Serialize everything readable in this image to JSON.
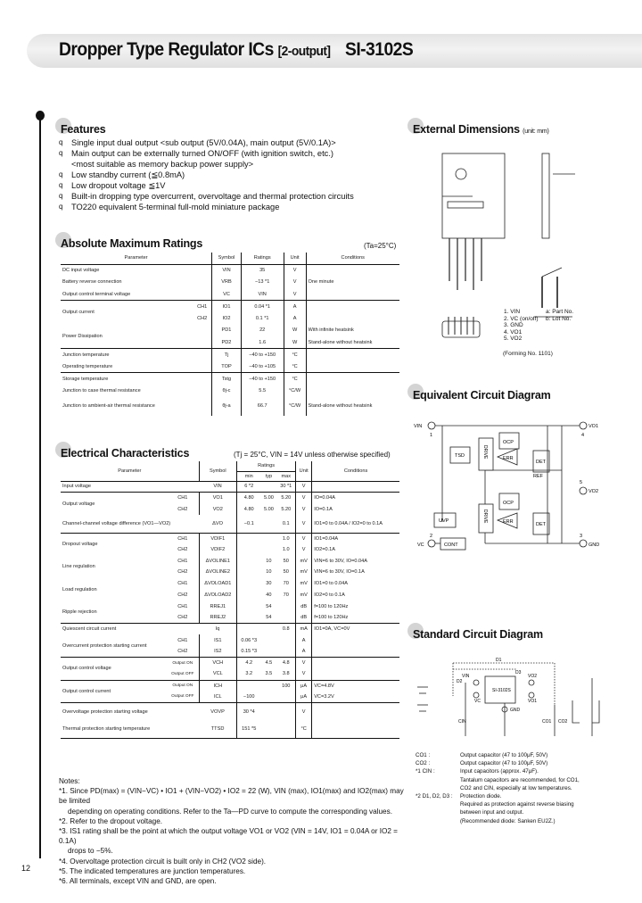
{
  "header": {
    "title": "Dropper Type Regulator ICs",
    "subtitle": "[2-output]",
    "part_number": "SI-3102S"
  },
  "features": {
    "heading": "Features",
    "bullet": "q",
    "items": [
      "Single input dual output <sub output (5V/0.04A), main output (5V/0.1A)>",
      "Main output can be externally turned ON/OFF (with ignition switch, etc.)",
      "<most suitable as memory backup power supply>",
      "Low standby current (≦0.8mA)",
      "Low dropout voltage ≦1V",
      "Built-in dropping type overcurrent, overvoltage and thermal protection circuits",
      "TO220 equivalent 5-terminal full-mold miniature package"
    ]
  },
  "abs_max": {
    "heading": "Absolute Maximum Ratings",
    "condition": "(Ta=25°C)",
    "columns": [
      "Parameter",
      "Symbol",
      "Ratings",
      "Unit",
      "Conditions"
    ],
    "groups": [
      {
        "parameter": "DC input voltage",
        "rows": [
          {
            "ch": "",
            "symbol": "VIN",
            "rating": "35",
            "unit": "V",
            "cond": ""
          }
        ]
      },
      {
        "parameter": "Battery reverse connection",
        "rows": [
          {
            "ch": "",
            "symbol": "VRB",
            "rating": "−13 *1",
            "unit": "V",
            "cond": "One minute"
          }
        ]
      },
      {
        "parameter": "Output control terminal voltage",
        "rows": [
          {
            "ch": "",
            "symbol": "VC",
            "rating": "VIN",
            "unit": "V",
            "cond": ""
          }
        ]
      },
      {
        "parameter": "Output current",
        "rows": [
          {
            "ch": "CH1",
            "symbol": "IO1",
            "rating": "0.04 *1",
            "unit": "A",
            "cond": ""
          },
          {
            "ch": "CH2",
            "symbol": "IO2",
            "rating": "0.1 *1",
            "unit": "A",
            "cond": ""
          }
        ]
      },
      {
        "parameter": "Power Dissipation",
        "rows": [
          {
            "ch": "",
            "symbol": "PD1",
            "rating": "22",
            "unit": "W",
            "cond": "With infinite heatsink"
          },
          {
            "ch": "",
            "symbol": "PD2",
            "rating": "1.6",
            "unit": "W",
            "cond": "Stand-alone without heatsink"
          }
        ]
      },
      {
        "parameter": "Junction temperature",
        "rows": [
          {
            "ch": "",
            "symbol": "Tj",
            "rating": "−40 to +150",
            "unit": "°C",
            "cond": ""
          }
        ]
      },
      {
        "parameter": "Operating temperature",
        "rows": [
          {
            "ch": "",
            "symbol": "TOP",
            "rating": "−40 to +105",
            "unit": "°C",
            "cond": ""
          }
        ]
      },
      {
        "parameter": "Storage temperature",
        "rows": [
          {
            "ch": "",
            "symbol": "Tstg",
            "rating": "−40 to +150",
            "unit": "°C",
            "cond": ""
          }
        ]
      },
      {
        "parameter": "Junction to case thermal resistance",
        "rows": [
          {
            "ch": "",
            "symbol": "θj-c",
            "rating": "5.5",
            "unit": "°C/W",
            "cond": ""
          }
        ]
      },
      {
        "parameter": "Junction to ambient-air thermal resistance",
        "rows": [
          {
            "ch": "",
            "symbol": "θj-a",
            "rating": "66.7",
            "unit": "°C/W",
            "cond": "Stand-alone without heatsink"
          }
        ]
      }
    ]
  },
  "elec": {
    "heading": "Electrical Characteristics",
    "condition": "(Tj = 25°C, VIN = 14V unless otherwise specified)",
    "columns": {
      "parameter": "Parameter",
      "symbol": "Symbol",
      "ratings": "Ratings",
      "min": "min",
      "typ": "typ",
      "max": "max",
      "unit": "Unit",
      "conditions": "Conditions"
    },
    "groups": [
      {
        "parameter": "Input voltage",
        "rows": [
          {
            "ch": "",
            "symbol": "VIN",
            "min": "6 *2",
            "typ": "",
            "max": "30 *1",
            "unit": "V",
            "cond": ""
          }
        ]
      },
      {
        "parameter": "Output voltage",
        "rows": [
          {
            "ch": "CH1",
            "symbol": "VO1",
            "min": "4.80",
            "typ": "5.00",
            "max": "5.20",
            "unit": "V",
            "cond": "IO=0.04A"
          },
          {
            "ch": "CH2",
            "symbol": "VO2",
            "min": "4.80",
            "typ": "5.00",
            "max": "5.20",
            "unit": "V",
            "cond": "IO=0.1A"
          }
        ]
      },
      {
        "parameter": "Channel-channel voltage difference (VO1—VO2)",
        "rows": [
          {
            "ch": "",
            "symbol": "ΔVO",
            "min": "−0.1",
            "typ": "",
            "max": "0.1",
            "unit": "V",
            "cond": "IO1=0 to 0.04A / IO2=0 to 0.1A"
          }
        ]
      },
      {
        "parameter": "Dropout voltage",
        "rows": [
          {
            "ch": "CH1",
            "symbol": "VDIF1",
            "min": "",
            "typ": "",
            "max": "1.0",
            "unit": "V",
            "cond": "IO1=0.04A"
          },
          {
            "ch": "CH2",
            "symbol": "VDIF2",
            "min": "",
            "typ": "",
            "max": "1.0",
            "unit": "V",
            "cond": "IO2=0.1A"
          }
        ]
      },
      {
        "parameter": "Line regulation",
        "rows": [
          {
            "ch": "CH1",
            "symbol": "ΔVOLINE1",
            "min": "",
            "typ": "10",
            "max": "50",
            "unit": "mV",
            "cond": "VIN=6 to 30V, IO=0.04A"
          },
          {
            "ch": "CH2",
            "symbol": "ΔVOLINE2",
            "min": "",
            "typ": "10",
            "max": "50",
            "unit": "mV",
            "cond": "VIN=6 to 30V, IO=0.1A"
          }
        ]
      },
      {
        "parameter": "Load regulation",
        "rows": [
          {
            "ch": "CH1",
            "symbol": "ΔVOLOAD1",
            "min": "",
            "typ": "30",
            "max": "70",
            "unit": "mV",
            "cond": "IO1=0 to 0.04A"
          },
          {
            "ch": "CH2",
            "symbol": "ΔVOLOAD2",
            "min": "",
            "typ": "40",
            "max": "70",
            "unit": "mV",
            "cond": "IO2=0 to 0.1A"
          }
        ]
      },
      {
        "parameter": "Ripple rejection",
        "rows": [
          {
            "ch": "CH1",
            "symbol": "RREJ1",
            "min": "",
            "typ": "54",
            "max": "",
            "unit": "dB",
            "cond": "f=100 to 120Hz"
          },
          {
            "ch": "CH2",
            "symbol": "RREJ2",
            "min": "",
            "typ": "54",
            "max": "",
            "unit": "dB",
            "cond": "f=100 to 120Hz"
          }
        ]
      },
      {
        "parameter": "Quiescent circuit current",
        "rows": [
          {
            "ch": "",
            "symbol": "Iq",
            "min": "",
            "typ": "",
            "max": "0.8",
            "unit": "mA",
            "cond": "IO1=0A, VC=0V"
          }
        ]
      },
      {
        "parameter": "Overcurrent protection starting current",
        "rows": [
          {
            "ch": "CH1",
            "symbol": "IS1",
            "min": "0.06 *3",
            "typ": "",
            "max": "",
            "unit": "A",
            "cond": ""
          },
          {
            "ch": "CH2",
            "symbol": "IS2",
            "min": "0.15 *3",
            "typ": "",
            "max": "",
            "unit": "A",
            "cond": ""
          }
        ]
      },
      {
        "parameter": "Output control voltage",
        "rows": [
          {
            "ch": "Output ON",
            "symbol": "VCH",
            "min": "4.2",
            "typ": "4.5",
            "max": "4.8",
            "unit": "V",
            "cond": ""
          },
          {
            "ch": "Output OFF",
            "symbol": "VCL",
            "min": "3.2",
            "typ": "3.5",
            "max": "3.8",
            "unit": "V",
            "cond": ""
          }
        ]
      },
      {
        "parameter": "Output control current",
        "rows": [
          {
            "ch": "Output ON",
            "symbol": "ICH",
            "min": "",
            "typ": "",
            "max": "100",
            "unit": "μA",
            "cond": "VC=4.8V"
          },
          {
            "ch": "Output OFF",
            "symbol": "ICL",
            "min": "−100",
            "typ": "",
            "max": "",
            "unit": "μA",
            "cond": "VC=3.2V"
          }
        ]
      },
      {
        "parameter": "Overvoltage protection starting voltage",
        "rows": [
          {
            "ch": "",
            "symbol": "VOVP",
            "min": "30 *4",
            "typ": "",
            "max": "",
            "unit": "V",
            "cond": ""
          }
        ]
      },
      {
        "parameter": "Thermal protection starting temperature",
        "rows": [
          {
            "ch": "",
            "symbol": "TTSD",
            "min": "151 *5",
            "typ": "",
            "max": "",
            "unit": "°C",
            "cond": ""
          }
        ]
      }
    ]
  },
  "notes": {
    "heading": "Notes:",
    "items": [
      "*1. Since PD(max) = (VIN−VC) • IO1 + (VIN−VO2) • IO2 = 22 (W), VIN (max), IO1(max) and IO2(max) may be limited",
      "depending on operating conditions. Refer to the Ta—PD curve to compute the corresponding values.",
      "*2. Refer to the dropout voltage.",
      "*3. IS1 rating shall be the point at which the output voltage VO1 or VO2 (VIN = 14V, IO1 = 0.04A or IO2 = 0.1A)",
      "drops to −5%.",
      "*4. Overvoltage protection circuit is built only in CH2 (VO2 side).",
      "*5. The indicated temperatures are junction temperatures.",
      "*6. All terminals, except VIN and GND, are open."
    ]
  },
  "ext_dim": {
    "heading": "External Dimensions",
    "unit": "(unit: mm)",
    "pins": [
      "1. VIN",
      "2. VC (on/off)",
      "3. GND",
      "4. VO1",
      "5. VO2"
    ],
    "marks": [
      "a: Part No.",
      "b: Lot No."
    ],
    "forming": "(Forming No. 1101)"
  },
  "equiv": {
    "heading": "Equivalent Circuit Diagram",
    "labels": {
      "vin": "VIN",
      "vo1": "VO1",
      "vo2": "VO2",
      "vc": "VC",
      "gnd": "GND",
      "p1": "1",
      "p2": "2",
      "p3": "3",
      "p4": "4",
      "p5": "5",
      "tsd": "TSD",
      "ocp": "OCP",
      "det": "DET",
      "err": "ERR",
      "ref": "REF",
      "uvp": "UVP",
      "cont": "CONT",
      "drive": "DRIVE"
    }
  },
  "std": {
    "heading": "Standard Circuit Diagram",
    "labels": {
      "ic": "SI-3102S",
      "gnd": "GND",
      "vin": "VIN",
      "vc": "VC",
      "vo1": "VO1",
      "vo2": "VO2",
      "d1": "D1",
      "d2": "D2",
      "d3": "D3",
      "cin": "CIN",
      "co1": "CO1",
      "co2": "CO2"
    },
    "legend": [
      {
        "k": "CO1 :",
        "v": "Output capacitor (47 to 100μF, 50V)"
      },
      {
        "k": "CO2 :",
        "v": "Output capacitor (47 to 100μF, 50V)"
      },
      {
        "k": "*1 CIN :",
        "v": "Input capacitors (approx. 47μF)."
      },
      {
        "k": "",
        "v": "Tantalum capacitors are recommended, for CO1,"
      },
      {
        "k": "",
        "v": "CO2 and CIN, especially at low temperatures."
      },
      {
        "k": "*2 D1, D2, D3 :",
        "v": "Protection diode."
      },
      {
        "k": "",
        "v": "Required as protection against reverse biasing"
      },
      {
        "k": "",
        "v": "between input and output."
      },
      {
        "k": "",
        "v": "(Recommended diode: Sanken EU2Z.)"
      }
    ]
  },
  "page_number": "12"
}
